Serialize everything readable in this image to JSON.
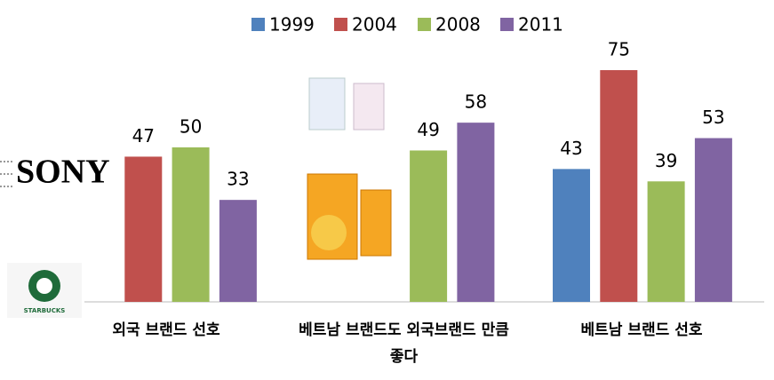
{
  "chart_data": {
    "type": "bar",
    "categories": [
      "외국 브랜드 선호",
      "베트남 브랜드도 외국브랜드 만큼 좋다",
      "베트남 브랜드 선호"
    ],
    "series": [
      {
        "name": "1999",
        "color": "#4f81bd",
        "values": [
          null,
          null,
          43
        ]
      },
      {
        "name": "2004",
        "color": "#c0504d",
        "values": [
          47,
          null,
          75
        ]
      },
      {
        "name": "2008",
        "color": "#9bbb59",
        "values": [
          50,
          49,
          39
        ]
      },
      {
        "name": "2011",
        "color": "#8064a2",
        "values": [
          33,
          58,
          53
        ]
      }
    ],
    "legend": "top",
    "logo_texts": [
      "SONY",
      "STARBUCKS"
    ]
  }
}
